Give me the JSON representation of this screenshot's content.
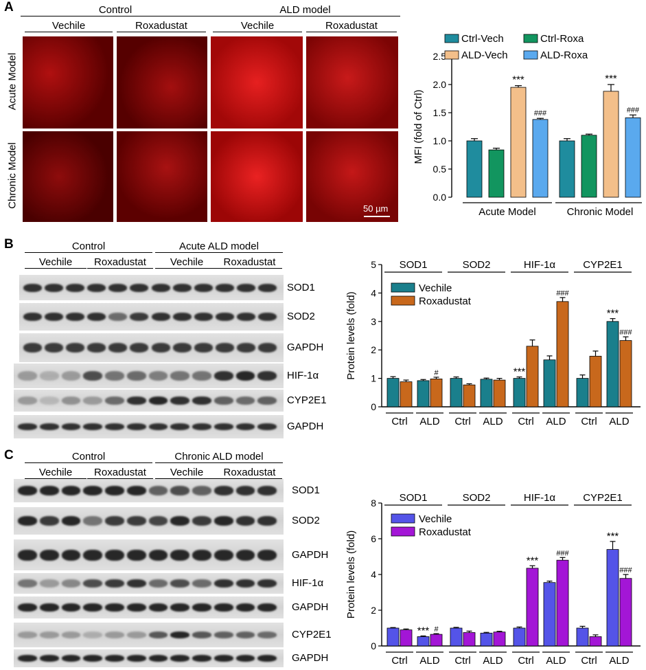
{
  "panels": {
    "a": "A",
    "b": "B",
    "c": "C"
  },
  "panel_a": {
    "group_control": "Control",
    "group_ald": "ALD model",
    "sub_labels": [
      "Vechile",
      "Roxadustat",
      "Vechile",
      "Roxadustat"
    ],
    "row_acute": "Acute Model",
    "row_chronic": "Chronic Model",
    "scale_bar": "50 µm"
  },
  "panel_b": {
    "group_control": "Control",
    "group_ald": "Acute ALD model",
    "sub_labels": [
      "Vechile",
      "Roxadustat",
      "Vechile",
      "Roxadustat"
    ],
    "blot_labels": [
      "SOD1",
      "SOD2",
      "GAPDH",
      "HIF-1α",
      "CYP2E1",
      "GAPDH"
    ]
  },
  "panel_c": {
    "group_control": "Control",
    "group_ald": "Chronic ALD model",
    "sub_labels": [
      "Vechile",
      "Roxadustat",
      "Vechile",
      "Roxadustat"
    ],
    "blot_labels": [
      "SOD1",
      "SOD2",
      "GAPDH",
      "HIF-1α",
      "GAPDH",
      "CYP2E1",
      "GAPDH"
    ]
  },
  "chart_data": [
    {
      "type": "bar",
      "ylabel": "MFI (fold of Ctrl)",
      "ylim": [
        0,
        2.5
      ],
      "yticks": [
        "0.0",
        "0.5",
        "1.0",
        "1.5",
        "2.0",
        "2.5"
      ],
      "groups": [
        "Acute Model",
        "Chronic Model"
      ],
      "series": [
        {
          "name": "Ctrl-Vech",
          "color": "#1f8c9e",
          "values": [
            1.0,
            1.0
          ],
          "errors": [
            0.04,
            0.04
          ],
          "marks": [
            "",
            ""
          ]
        },
        {
          "name": "Ctrl-Roxa",
          "color": "#12955f",
          "values": [
            0.84,
            1.1
          ],
          "errors": [
            0.03,
            0.02
          ],
          "marks": [
            "",
            ""
          ]
        },
        {
          "name": "ALD-Vech",
          "color": "#f3bf8a",
          "values": [
            1.95,
            1.88
          ],
          "errors": [
            0.03,
            0.12
          ],
          "marks": [
            "***",
            "***"
          ]
        },
        {
          "name": "ALD-Roxa",
          "color": "#5aa9ee",
          "values": [
            1.38,
            1.41
          ],
          "errors": [
            0.02,
            0.05
          ],
          "marks": [
            "###",
            "###"
          ]
        }
      ]
    },
    {
      "type": "bar",
      "ylabel": "Protein levels (fold)",
      "ylim": [
        0,
        5
      ],
      "yticks": [
        "0",
        "1",
        "2",
        "3",
        "4",
        "5"
      ],
      "proteins": [
        "SOD1",
        "SOD2",
        "HIF-1α",
        "CYP2E1"
      ],
      "conditions": [
        "Ctrl",
        "ALD"
      ],
      "series": [
        {
          "name": "Vechile",
          "color": "#1a7f8c",
          "values": [
            [
              1.0,
              0.92
            ],
            [
              1.0,
              0.97
            ],
            [
              1.0,
              1.65
            ],
            [
              1.0,
              3.0
            ]
          ],
          "errors": [
            [
              0.06,
              0.04
            ],
            [
              0.05,
              0.04
            ],
            [
              0.05,
              0.14
            ],
            [
              0.12,
              0.1
            ]
          ],
          "marks": [
            [
              "",
              ""
            ],
            [
              "",
              ""
            ],
            [
              "***",
              ""
            ],
            [
              "",
              "***"
            ]
          ]
        },
        {
          "name": "Roxadustat",
          "color": "#c8681c",
          "values": [
            [
              0.88,
              0.98
            ],
            [
              0.77,
              0.94
            ],
            [
              2.13,
              3.7
            ],
            [
              1.78,
              2.33
            ]
          ],
          "errors": [
            [
              0.06,
              0.06
            ],
            [
              0.04,
              0.06
            ],
            [
              0.22,
              0.14
            ],
            [
              0.18,
              0.13
            ]
          ],
          "marks": [
            [
              "",
              "#"
            ],
            [
              "",
              ""
            ],
            [
              "",
              "###"
            ],
            [
              "",
              "###"
            ]
          ]
        }
      ]
    },
    {
      "type": "bar",
      "ylabel": "Protein levels (fold)",
      "ylim": [
        0,
        8
      ],
      "yticks": [
        "0",
        "2",
        "4",
        "6",
        "8"
      ],
      "proteins": [
        "SOD1",
        "SOD2",
        "HIF-1α",
        "CYP2E1"
      ],
      "conditions": [
        "Ctrl",
        "ALD"
      ],
      "series": [
        {
          "name": "Vechile",
          "color": "#5454e8",
          "values": [
            [
              1.0,
              0.52
            ],
            [
              1.0,
              0.72
            ],
            [
              1.0,
              3.55
            ],
            [
              1.0,
              5.4
            ]
          ],
          "errors": [
            [
              0.03,
              0.04
            ],
            [
              0.04,
              0.04
            ],
            [
              0.06,
              0.08
            ],
            [
              0.1,
              0.45
            ]
          ],
          "marks": [
            [
              "",
              "***"
            ],
            [
              "",
              ""
            ],
            [
              "",
              ""
            ],
            [
              "",
              "***"
            ]
          ]
        },
        {
          "name": "Roxadustat",
          "color": "#a316d6",
          "values": [
            [
              0.9,
              0.65
            ],
            [
              0.75,
              0.78
            ],
            [
              4.35,
              4.8
            ],
            [
              0.52,
              3.78
            ]
          ],
          "errors": [
            [
              0.05,
              0.04
            ],
            [
              0.08,
              0.04
            ],
            [
              0.14,
              0.15
            ],
            [
              0.1,
              0.22
            ]
          ],
          "marks": [
            [
              "",
              "#"
            ],
            [
              "",
              ""
            ],
            [
              "***",
              "###"
            ],
            [
              "",
              "###"
            ]
          ]
        }
      ]
    }
  ]
}
